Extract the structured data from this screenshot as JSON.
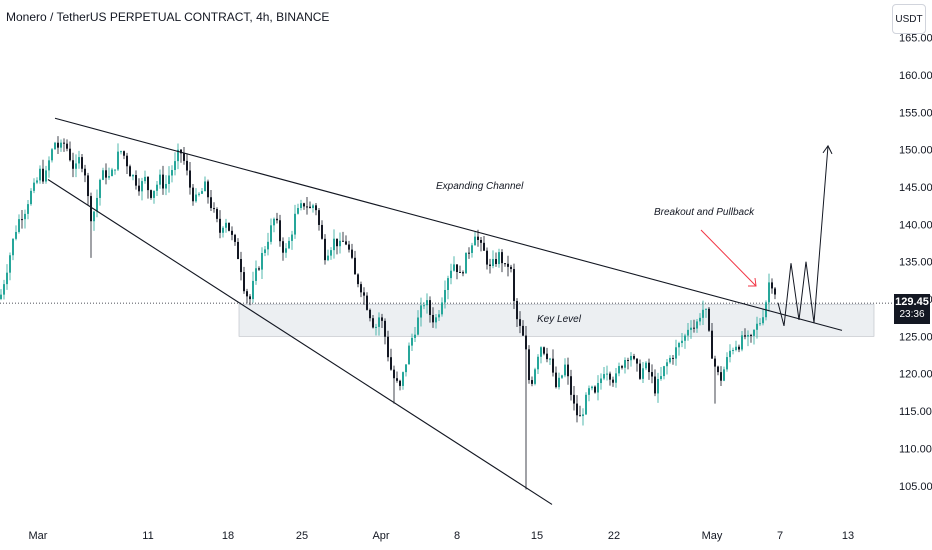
{
  "header": {
    "title": "Monero / TetherUS PERPETUAL CONTRACT, 4h, BINANCE"
  },
  "axis": {
    "unit": "USDT"
  },
  "price_badge": {
    "price": "129.45",
    "countdown": "23:36"
  },
  "chart_data": {
    "type": "candlestick",
    "title": "Monero / TetherUS PERPETUAL CONTRACT, 4h, BINANCE",
    "yticks": [
      "165.00",
      "160.00",
      "155.00",
      "150.00",
      "145.00",
      "140.00",
      "135.00",
      "130.00",
      "125.00",
      "120.00",
      "115.00",
      "110.00",
      "105.00"
    ],
    "ylim": [
      102,
      167
    ],
    "xticks": [
      "Mar",
      "11",
      "18",
      "25",
      "Apr",
      "8",
      "15",
      "22",
      "May",
      "7",
      "13"
    ],
    "last_price": 129.45,
    "key_level_zone": [
      125,
      129.3
    ],
    "colors": {
      "up": "#26a69a",
      "down": "#131722",
      "annotation_arrow": "#f23645",
      "zone": "#eceff2"
    },
    "annotations": [
      "Expanding Channel",
      "Breakout and Pullback",
      "Key Level"
    ],
    "price_path": [
      [
        0,
        130
      ],
      [
        5,
        133
      ],
      [
        10,
        136
      ],
      [
        15,
        139
      ],
      [
        20,
        141
      ],
      [
        25,
        142
      ],
      [
        30,
        144
      ],
      [
        35,
        145
      ],
      [
        40,
        147
      ],
      [
        45,
        146
      ],
      [
        50,
        149
      ],
      [
        55,
        151
      ],
      [
        60,
        150
      ],
      [
        65,
        151
      ],
      [
        70,
        149
      ],
      [
        75,
        147
      ],
      [
        80,
        149
      ],
      [
        85,
        147
      ],
      [
        90,
        141
      ],
      [
        95,
        142
      ],
      [
        100,
        146
      ],
      [
        105,
        147
      ],
      [
        110,
        146
      ],
      [
        115,
        148
      ],
      [
        120,
        150
      ],
      [
        125,
        149
      ],
      [
        130,
        147
      ],
      [
        135,
        146
      ],
      [
        140,
        145
      ],
      [
        145,
        146
      ],
      [
        150,
        144
      ],
      [
        155,
        145
      ],
      [
        160,
        146
      ],
      [
        165,
        145
      ],
      [
        170,
        147
      ],
      [
        175,
        148
      ],
      [
        180,
        150
      ],
      [
        185,
        148
      ],
      [
        190,
        145
      ],
      [
        195,
        143
      ],
      [
        200,
        144
      ],
      [
        205,
        145
      ],
      [
        210,
        143
      ],
      [
        215,
        141
      ],
      [
        220,
        139
      ],
      [
        225,
        141
      ],
      [
        230,
        139
      ],
      [
        235,
        137
      ],
      [
        240,
        135
      ],
      [
        245,
        131
      ],
      [
        250,
        130
      ],
      [
        255,
        133
      ],
      [
        260,
        135
      ],
      [
        265,
        137
      ],
      [
        270,
        139
      ],
      [
        275,
        141
      ],
      [
        280,
        138
      ],
      [
        285,
        136
      ],
      [
        290,
        138
      ],
      [
        295,
        141
      ],
      [
        300,
        142
      ],
      [
        305,
        143
      ],
      [
        310,
        142
      ],
      [
        315,
        143
      ],
      [
        320,
        139
      ],
      [
        325,
        136
      ],
      [
        330,
        137
      ],
      [
        335,
        138
      ],
      [
        340,
        137
      ],
      [
        345,
        138
      ],
      [
        350,
        136
      ],
      [
        355,
        133
      ],
      [
        360,
        132
      ],
      [
        365,
        130
      ],
      [
        370,
        128
      ],
      [
        375,
        126
      ],
      [
        380,
        128
      ],
      [
        385,
        125
      ],
      [
        390,
        121
      ],
      [
        395,
        119
      ],
      [
        400,
        118
      ],
      [
        405,
        121
      ],
      [
        410,
        124
      ],
      [
        415,
        126
      ],
      [
        420,
        128
      ],
      [
        425,
        130
      ],
      [
        430,
        128
      ],
      [
        435,
        127
      ],
      [
        440,
        129
      ],
      [
        445,
        132
      ],
      [
        450,
        134
      ],
      [
        455,
        135
      ],
      [
        460,
        133
      ],
      [
        465,
        135
      ],
      [
        470,
        137
      ],
      [
        475,
        139
      ],
      [
        480,
        137
      ],
      [
        485,
        136
      ],
      [
        490,
        134
      ],
      [
        495,
        135
      ],
      [
        500,
        136
      ],
      [
        505,
        134
      ],
      [
        510,
        135
      ],
      [
        515,
        128
      ],
      [
        520,
        126
      ],
      [
        525,
        124
      ],
      [
        530,
        118
      ],
      [
        535,
        121
      ],
      [
        540,
        124
      ],
      [
        545,
        123
      ],
      [
        550,
        122
      ],
      [
        555,
        118
      ],
      [
        560,
        119
      ],
      [
        565,
        121
      ],
      [
        570,
        118
      ],
      [
        575,
        115
      ],
      [
        580,
        114
      ],
      [
        585,
        116
      ],
      [
        590,
        118
      ],
      [
        595,
        117
      ],
      [
        600,
        119
      ],
      [
        605,
        121
      ],
      [
        610,
        120
      ],
      [
        615,
        119
      ],
      [
        620,
        121
      ],
      [
        625,
        122
      ],
      [
        630,
        123
      ],
      [
        635,
        121
      ],
      [
        640,
        120
      ],
      [
        645,
        121
      ],
      [
        650,
        120
      ],
      [
        655,
        118
      ],
      [
        660,
        119
      ],
      [
        665,
        121
      ],
      [
        670,
        122
      ],
      [
        675,
        123
      ],
      [
        680,
        124
      ],
      [
        685,
        125
      ],
      [
        690,
        127
      ],
      [
        695,
        126
      ],
      [
        700,
        128
      ],
      [
        705,
        129
      ],
      [
        710,
        124
      ],
      [
        715,
        121
      ],
      [
        720,
        119
      ],
      [
        725,
        121
      ],
      [
        730,
        123
      ],
      [
        735,
        124
      ],
      [
        740,
        124
      ],
      [
        745,
        125
      ],
      [
        750,
        124
      ],
      [
        755,
        126
      ],
      [
        760,
        127
      ],
      [
        765,
        129
      ],
      [
        770,
        133
      ],
      [
        775,
        131
      ],
      [
        778,
        129.5
      ]
    ],
    "drawings": {
      "channel_top": [
        [
          55,
          154.2
        ],
        [
          842,
          125.8
        ]
      ],
      "channel_bottom": [
        [
          48,
          146
        ],
        [
          552,
          102.5
        ]
      ],
      "projection": [
        [
          778,
          129.5
        ],
        [
          784,
          126.4
        ],
        [
          791,
          134.8
        ],
        [
          799,
          127.2
        ],
        [
          806,
          135
        ],
        [
          814,
          126.8
        ],
        [
          828,
          150.5
        ]
      ]
    }
  }
}
